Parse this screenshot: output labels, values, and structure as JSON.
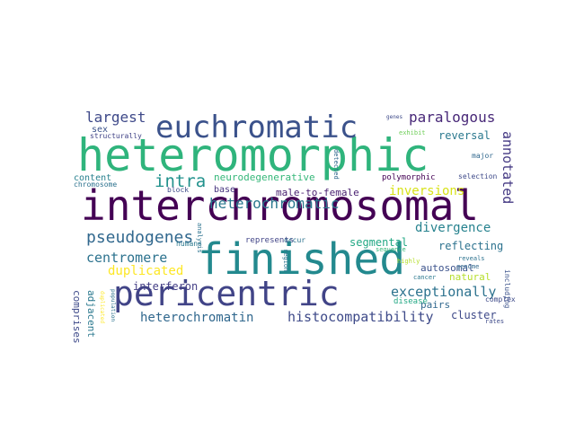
{
  "words": [
    {
      "text": "heteromorphic",
      "color": "#2fb47c"
    },
    {
      "text": "interchromosomal",
      "color": "#440154"
    },
    {
      "text": "finished",
      "color": "#23898e"
    },
    {
      "text": "pericentric",
      "color": "#414487"
    },
    {
      "text": "euchromatic",
      "color": "#3b528b"
    },
    {
      "text": "intra",
      "color": "#21918c"
    },
    {
      "text": "heterochromatic",
      "color": "#2a788e"
    },
    {
      "text": "pseudogenes",
      "color": "#31688e"
    },
    {
      "text": "largest",
      "color": "#3e4989"
    },
    {
      "text": "paralogous",
      "color": "#482878"
    },
    {
      "text": "centromere",
      "color": "#2c728e"
    },
    {
      "text": "duplicated",
      "color": "#fde725"
    },
    {
      "text": "exceptionally",
      "color": "#2c728e"
    },
    {
      "text": "histocompatibility",
      "color": "#3e4a89"
    },
    {
      "text": "heterochromatin",
      "color": "#31688e"
    },
    {
      "text": "divergence",
      "color": "#26828e"
    },
    {
      "text": "inversions",
      "color": "#d8e219"
    },
    {
      "text": "annotated",
      "color": "#443983"
    },
    {
      "text": "segmental",
      "color": "#22a884"
    },
    {
      "text": "reflecting",
      "color": "#2c728e"
    },
    {
      "text": "autosomal",
      "color": "#3b528b"
    },
    {
      "text": "natural",
      "color": "#b5de2b"
    },
    {
      "text": "interferon",
      "color": "#433e85"
    },
    {
      "text": "adjacent",
      "color": "#2a788e"
    },
    {
      "text": "comprises",
      "color": "#3e4a89"
    },
    {
      "text": "cluster",
      "color": "#3e4989"
    },
    {
      "text": "pairs",
      "color": "#31688e"
    },
    {
      "text": "male-to-female",
      "color": "#481f70"
    },
    {
      "text": "neurodegenerative",
      "color": "#35b779"
    },
    {
      "text": "content",
      "color": "#27808e"
    },
    {
      "text": "chromosome",
      "color": "#2c728e"
    },
    {
      "text": "base",
      "color": "#46337e"
    },
    {
      "text": "block",
      "color": "#3e4a89"
    },
    {
      "text": "reversal",
      "color": "#2a788e"
    },
    {
      "text": "sex",
      "color": "#3b528b"
    },
    {
      "text": "structurally",
      "color": "#414487"
    },
    {
      "text": "genes",
      "color": "#3e4a89"
    },
    {
      "text": "exhibit",
      "color": "#6ece58"
    },
    {
      "text": "major",
      "color": "#31688e"
    },
    {
      "text": "selection",
      "color": "#3e4a89"
    },
    {
      "text": "polymorphic",
      "color": "#440154"
    },
    {
      "text": "detected",
      "color": "#31688e"
    },
    {
      "text": "represents",
      "color": "#414487"
    },
    {
      "text": "occur",
      "color": "#2c728e"
    },
    {
      "text": "region",
      "color": "#2c728e"
    },
    {
      "text": "sequence",
      "color": "#35b779"
    },
    {
      "text": "highly",
      "color": "#b5de2b"
    },
    {
      "text": "cancer",
      "color": "#2a788e"
    },
    {
      "text": "reveals",
      "color": "#2c728e"
    },
    {
      "text": "genome",
      "color": "#31688e"
    },
    {
      "text": "complex",
      "color": "#3e4a89"
    },
    {
      "text": "including",
      "color": "#3b528b"
    },
    {
      "text": "disease",
      "color": "#22a884"
    },
    {
      "text": "rates",
      "color": "#3e4a89"
    },
    {
      "text": "humans",
      "color": "#2a788e"
    },
    {
      "text": "analysis",
      "color": "#2c728e"
    },
    {
      "text": "duplicated",
      "color": "#fde725"
    },
    {
      "text": "population",
      "color": "#2c728e"
    }
  ]
}
